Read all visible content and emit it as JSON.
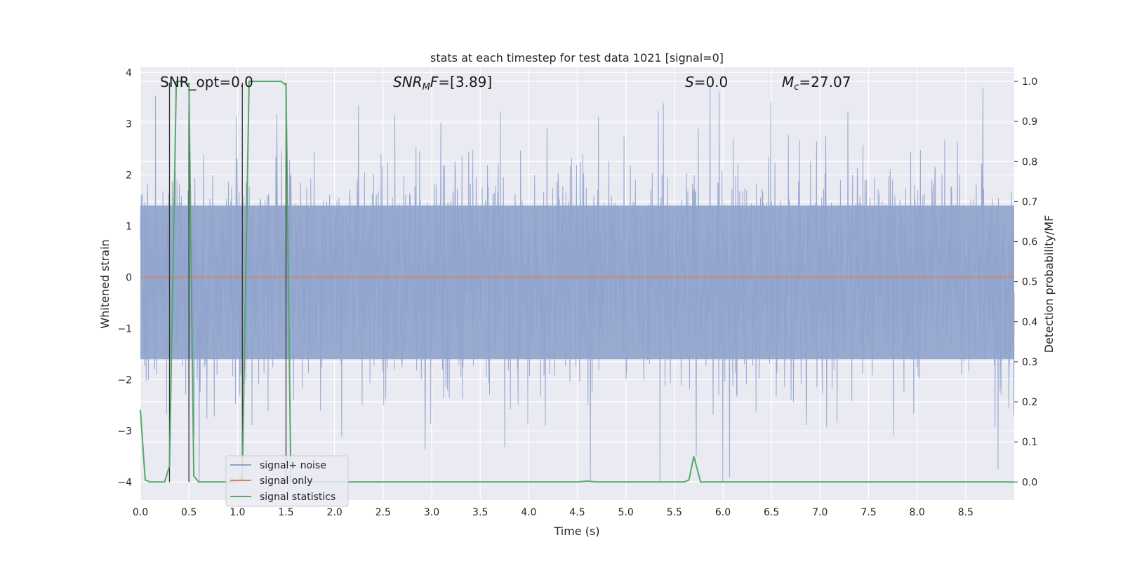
{
  "chart_data": {
    "type": "line",
    "title": "stats at each timestep for test data 1021 [signal=0]",
    "xlabel": "Time (s)",
    "ylabel": "Whitened strain",
    "ylabel_right": "Detection probability/MF",
    "xlim": [
      0.0,
      9.0
    ],
    "ylim": [
      -4.35,
      4.1
    ],
    "ylim_right": [
      -0.045,
      1.035
    ],
    "x_ticks": [
      "0.0",
      "0.5",
      "1.0",
      "1.5",
      "2.0",
      "2.5",
      "3.0",
      "3.5",
      "4.0",
      "4.5",
      "5.0",
      "5.5",
      "6.0",
      "6.5",
      "7.0",
      "7.5",
      "8.0",
      "8.5"
    ],
    "y_ticks": [
      "4",
      "3",
      "2",
      "1",
      "0",
      "−1",
      "−2",
      "−3",
      "−4"
    ],
    "y_ticks_right": [
      "1.0",
      "0.9",
      "0.8",
      "0.7",
      "0.6",
      "0.5",
      "0.4",
      "0.3",
      "0.2",
      "0.1",
      "0.0"
    ],
    "grid": true,
    "legend_position": "lower-left",
    "annotations": [
      {
        "text": "SNR_opt=0.0"
      },
      {
        "text": "SNR_MF=[3.89]"
      },
      {
        "text": "S=0.0"
      },
      {
        "text": "M_c=27.07"
      }
    ],
    "vertical_markers_x": [
      0.3,
      0.5,
      1.05,
      1.5
    ],
    "series": [
      {
        "name": "signal+ noise",
        "axis": "left",
        "color": "#8fa3cc",
        "description_amplitude": 1.5,
        "min": -4.0,
        "max": 3.7
      },
      {
        "name": "signal only",
        "axis": "left",
        "color": "#dd8452",
        "x": [
          0.0,
          9.0
        ],
        "y": [
          0.0,
          0.0
        ]
      },
      {
        "name": "signal statistics",
        "axis": "right",
        "color": "#55a868",
        "x": [
          0.0,
          0.05,
          0.1,
          0.25,
          0.3,
          0.37,
          0.45,
          0.5,
          0.55,
          0.6,
          0.65,
          1.0,
          1.05,
          1.12,
          1.2,
          1.45,
          1.5,
          1.55,
          1.6,
          4.5,
          4.6,
          4.7,
          5.6,
          5.65,
          5.7,
          5.77,
          9.0
        ],
        "y": [
          0.18,
          0.005,
          0.0,
          0.0,
          0.04,
          1.0,
          1.0,
          0.99,
          0.015,
          0.0,
          0.0,
          0.0,
          0.015,
          1.0,
          1.0,
          1.0,
          0.99,
          0.0,
          0.0,
          0.0,
          0.002,
          0.0,
          0.0,
          0.005,
          0.064,
          0.0,
          0.0
        ]
      }
    ]
  },
  "legend": {
    "items": [
      "signal+ noise",
      "signal only",
      "signal statistics"
    ]
  },
  "colors": {
    "plot_bg": "#eaeaf2",
    "grid": "#ffffff",
    "noise": "#8fa3cc",
    "signal": "#dd8452",
    "stats": "#55a868",
    "markers": "#333333"
  }
}
